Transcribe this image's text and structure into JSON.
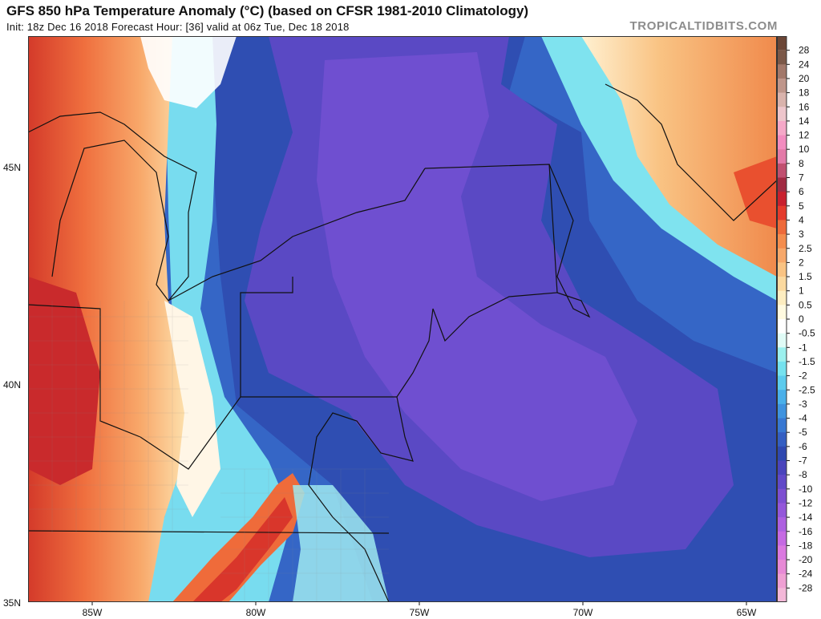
{
  "header": {
    "title": "GFS 850 hPa Temperature Anomaly (°C) (based on CFSR 1981-2010 Climatology)",
    "subtitle": "Init: 18z Dec 16 2018   Forecast Hour: [36]   valid at 06z Tue, Dec 18 2018",
    "brand": "TROPICALTIDBITS.COM"
  },
  "map": {
    "lat_labels": [
      "45N",
      "40N",
      "35N"
    ],
    "lon_labels": [
      "85W",
      "80W",
      "75W",
      "70W",
      "65W"
    ]
  },
  "colorbar": {
    "labels": [
      "28",
      "24",
      "20",
      "18",
      "16",
      "14",
      "12",
      "10",
      "8",
      "7",
      "6",
      "5",
      "4",
      "3",
      "2.5",
      "2",
      "1.5",
      "1",
      "0.5",
      "0",
      "-0.5",
      "-1",
      "-1.5",
      "-2",
      "-2.5",
      "-3",
      "-4",
      "-5",
      "-6",
      "-7",
      "-8",
      "-10",
      "-12",
      "-14",
      "-16",
      "-18",
      "-20",
      "-24",
      "-28"
    ],
    "colors": [
      "#7b5848",
      "#a2786a",
      "#bf968b",
      "#d9b3ac",
      "#eec6cc",
      "#f5a8c8",
      "#f28cbf",
      "#e37aa8",
      "#c05070",
      "#a02a42",
      "#c8202e",
      "#e43b2c",
      "#ee6a3a",
      "#f48d4e",
      "#f7a86a",
      "#f9c383",
      "#fbd99f",
      "#fdedc0",
      "#fffae0",
      "#ffffff",
      "#e0fbf6",
      "#9cf0ee",
      "#75e2ef",
      "#5ccbed",
      "#4ab0ea",
      "#3f93df",
      "#3878d2",
      "#345ec2",
      "#2f48b0",
      "#4a44bc",
      "#6149c8",
      "#7d4fd1",
      "#9457da",
      "#ad60e0",
      "#c56ae3",
      "#da79e0",
      "#e78ad6",
      "#efa0d3",
      "#f3b8d8"
    ]
  }
}
